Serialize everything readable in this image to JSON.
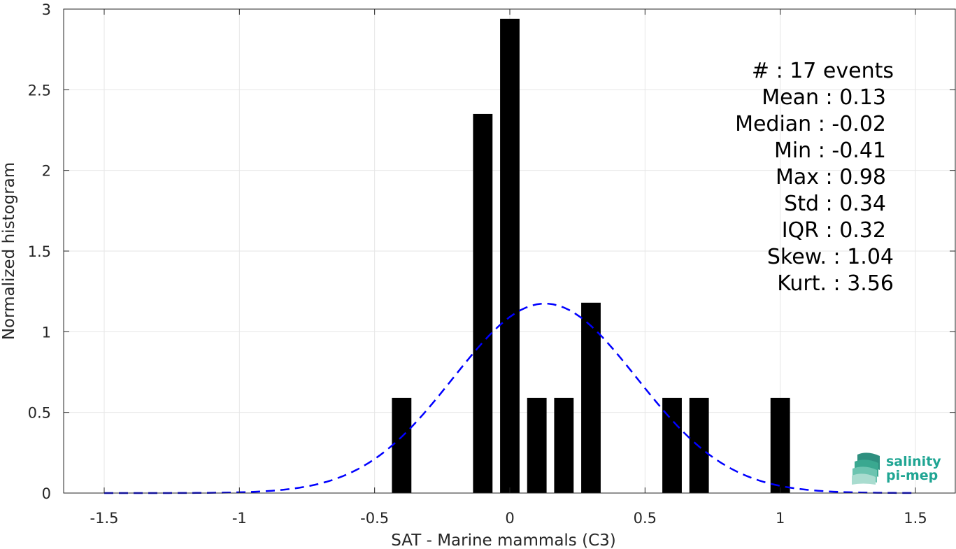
{
  "chart_data": {
    "type": "bar",
    "xlabel": "SAT - Marine mammals (C3)",
    "ylabel": "Normalized histogram",
    "xlim": [
      -1.65,
      1.65
    ],
    "ylim": [
      0,
      3
    ],
    "xticks": [
      "-1.5",
      "-1",
      "-0.5",
      "0",
      "0.5",
      "1",
      "1.5"
    ],
    "xtick_values": [
      -1.5,
      -1,
      -0.5,
      0,
      0.5,
      1,
      1.5
    ],
    "yticks": [
      "0",
      "0.5",
      "1",
      "1.5",
      "2",
      "2.5",
      "3"
    ],
    "ytick_values": [
      0,
      0.5,
      1,
      1.5,
      2,
      2.5,
      3
    ],
    "bin_width": 0.1,
    "bars": [
      {
        "x": -0.4,
        "value": 0.59
      },
      {
        "x": -0.1,
        "value": 2.35
      },
      {
        "x": 0.0,
        "value": 2.94
      },
      {
        "x": 0.1,
        "value": 0.59
      },
      {
        "x": 0.2,
        "value": 0.59
      },
      {
        "x": 0.3,
        "value": 1.18
      },
      {
        "x": 0.6,
        "value": 0.59
      },
      {
        "x": 0.7,
        "value": 0.59
      },
      {
        "x": 1.0,
        "value": 0.59
      }
    ],
    "fit": {
      "type": "gaussian",
      "mean": 0.13,
      "std": 0.34,
      "x_range": [
        -1.5,
        1.5
      ],
      "color": "#0000ff",
      "style": "dashed"
    },
    "bar_color": "#000000",
    "grid": true,
    "stats": [
      "#  : 17 events",
      "Mean : 0.13",
      "Median : -0.02",
      "Min : -0.41",
      "Max : 0.98",
      "Std : 0.34",
      "IQR : 0.32",
      "Skew. : 1.04",
      "Kurt. : 3.56"
    ]
  },
  "logo": {
    "line1": "salinity",
    "line2": "pi-mep",
    "color": "#1fa593"
  }
}
